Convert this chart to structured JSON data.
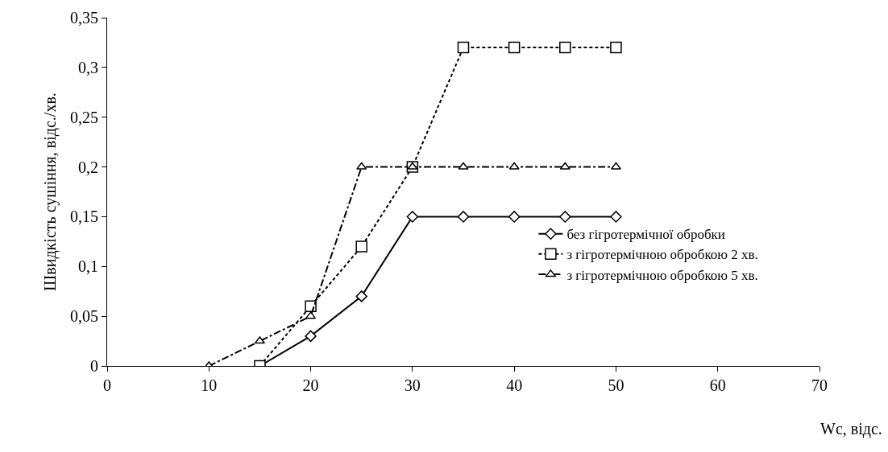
{
  "chart_data": {
    "type": "line",
    "xlabel": "Wc, відс.",
    "ylabel": "Швидкість сушіння, відс./хв.",
    "xlim": [
      0,
      70
    ],
    "xticks": [
      0,
      10,
      20,
      30,
      40,
      50,
      60,
      70
    ],
    "ylim": [
      0,
      0.35
    ],
    "yticks": [
      0,
      {
        "value": 0.05,
        "label": "0,05"
      },
      {
        "value": 0.1,
        "label": "0,1"
      },
      {
        "value": 0.15,
        "label": "0,15"
      },
      {
        "value": 0.2,
        "label": "0,2"
      },
      {
        "value": 0.25,
        "label": "0,25"
      },
      {
        "value": 0.3,
        "label": "0,3"
      },
      {
        "value": 0.35,
        "label": "0,35"
      }
    ],
    "grid": false,
    "legend": "right",
    "series": [
      {
        "name": "без гігротермічної обробки",
        "color": "#000000",
        "marker": "diamond",
        "line_style": "solid",
        "x": [
          15,
          20,
          25,
          30,
          35,
          40,
          45,
          50
        ],
        "values": [
          0,
          0.03,
          0.07,
          0.15,
          0.15,
          0.15,
          0.15,
          0.15
        ]
      },
      {
        "name": "з гігротермічною обробкою 2 хв.",
        "color": "#000000",
        "marker": "square",
        "line_style": "dotted",
        "x": [
          15,
          20,
          25,
          30,
          35,
          40,
          45,
          50
        ],
        "values": [
          0,
          0.06,
          0.12,
          0.2,
          0.32,
          0.32,
          0.32,
          0.32
        ]
      },
      {
        "name": "з гігротермічною обробкою 5 хв.",
        "color": "#000000",
        "marker": "triangle",
        "line_style": "dashed",
        "x": [
          10,
          15,
          20,
          25,
          30,
          35,
          40,
          45,
          50
        ],
        "values": [
          0,
          0.025,
          0.05,
          0.2,
          0.2,
          0.2,
          0.2,
          0.2,
          0.2
        ]
      }
    ]
  }
}
